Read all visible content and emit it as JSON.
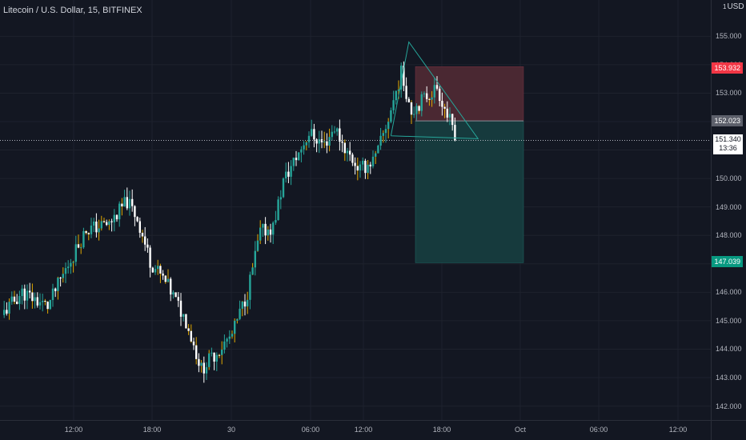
{
  "symbol_title": "Litecoin / U.S. Dollar, 15, BITFINEX",
  "currency": {
    "prefix": "1",
    "code": "USD"
  },
  "colors": {
    "background": "#131722",
    "grid": "#1e222d",
    "up": "#26a69a",
    "down": "#ffffff",
    "wick": "#e0a800",
    "pattern_line": "#26a69a",
    "stop_zone": "#4a2832",
    "target_zone": "#163a3d",
    "stop_label": "#f23645",
    "entry_label": "#5d606b",
    "target_label": "#089981"
  },
  "y_axis_ticks": [
    "155.000",
    "154.000",
    "153.000",
    "152.000",
    "151.000",
    "150.000",
    "149.000",
    "148.000",
    "147.000",
    "146.000",
    "145.000",
    "144.000",
    "143.000",
    "142.000"
  ],
  "x_axis_ticks": [
    "12:00",
    "18:00",
    "30",
    "06:00",
    "12:00",
    "18:00",
    "Oct",
    "06:00",
    "12:00"
  ],
  "price_labels": {
    "stop": "153.932",
    "entry": "152.023",
    "target": "147.039"
  },
  "current_price": {
    "value": "151.340",
    "countdown": "13:36"
  },
  "chart_data": {
    "type": "candlestick",
    "title": "Litecoin / U.S. Dollar, 15, BITFINEX",
    "interval": "15",
    "x_range": [
      "Sep 29 07:00",
      "Oct 1 13:00"
    ],
    "ylim": [
      141.6,
      155.9
    ],
    "grid": true,
    "last_price": 151.34,
    "close_path": [
      {
        "t": 0,
        "p": 145.2
      },
      {
        "t": 8,
        "p": 146.0
      },
      {
        "t": 18,
        "p": 145.5
      },
      {
        "t": 25,
        "p": 146.8
      },
      {
        "t": 33,
        "p": 148.2
      },
      {
        "t": 42,
        "p": 148.4
      },
      {
        "t": 49,
        "p": 149.2
      },
      {
        "t": 53,
        "p": 148.6
      },
      {
        "t": 58,
        "p": 147.1
      },
      {
        "t": 65,
        "p": 146.2
      },
      {
        "t": 72,
        "p": 145.0
      },
      {
        "t": 78,
        "p": 143.3
      },
      {
        "t": 83,
        "p": 143.8
      },
      {
        "t": 90,
        "p": 144.5
      },
      {
        "t": 96,
        "p": 146.0
      },
      {
        "t": 101,
        "p": 148.1
      },
      {
        "t": 106,
        "p": 148.3
      },
      {
        "t": 110,
        "p": 149.9
      },
      {
        "t": 116,
        "p": 150.9
      },
      {
        "t": 120,
        "p": 151.6
      },
      {
        "t": 126,
        "p": 151.2
      },
      {
        "t": 130,
        "p": 151.8
      },
      {
        "t": 135,
        "p": 150.9
      },
      {
        "t": 140,
        "p": 150.3
      },
      {
        "t": 146,
        "p": 150.7
      },
      {
        "t": 151,
        "p": 152.1
      },
      {
        "t": 156,
        "p": 153.7
      },
      {
        "t": 160,
        "p": 152.4
      },
      {
        "t": 166,
        "p": 152.9
      },
      {
        "t": 170,
        "p": 153.2
      },
      {
        "t": 175,
        "p": 152.0
      },
      {
        "t": 177,
        "p": 151.34
      }
    ],
    "position": {
      "entry": 152.023,
      "stop": 153.932,
      "target": 147.039
    },
    "triangle_pattern": [
      {
        "t": 152,
        "p": 151.5
      },
      {
        "t": 159,
        "p": 154.8
      },
      {
        "t": 186,
        "p": 151.4
      },
      {
        "t": 152,
        "p": 151.5
      }
    ]
  }
}
